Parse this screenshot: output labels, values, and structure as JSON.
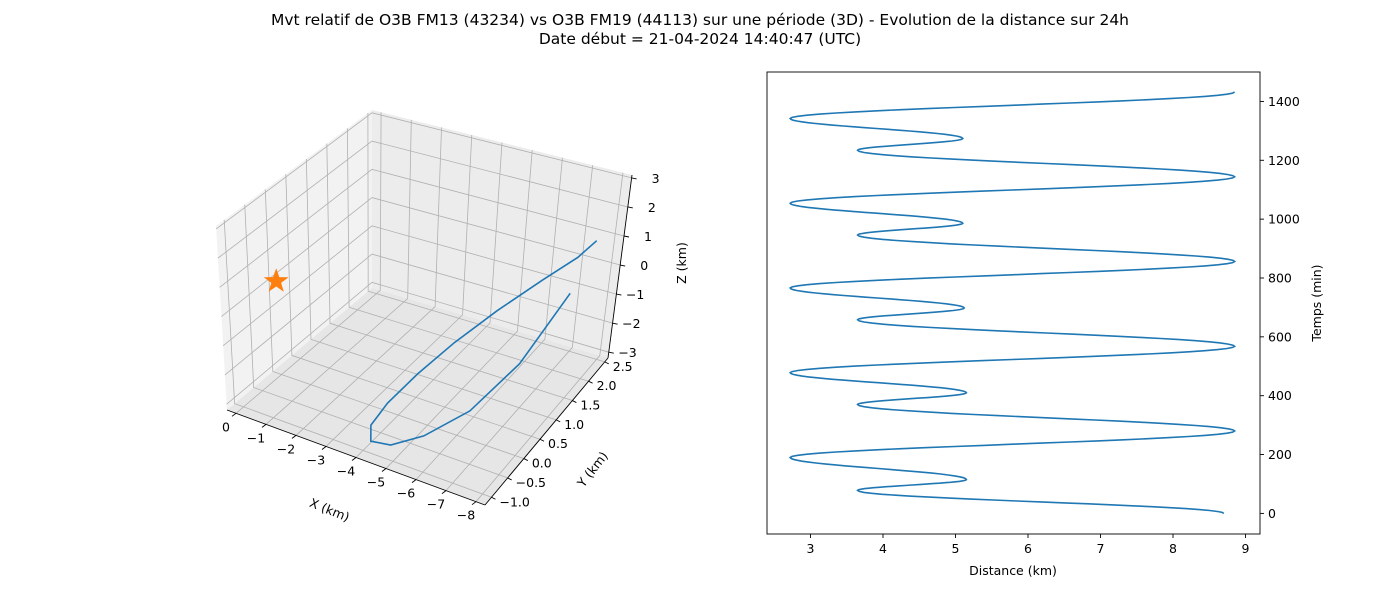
{
  "figure": {
    "title_line1": "Mvt relatif de O3B FM13 (43234) vs O3B FM19 (44113) sur une période (3D) - Evolution de la distance sur 24h",
    "title_line2": "Date début = 21-04-2024 14:40:47 (UTC)"
  },
  "colors": {
    "series": "#1f77b4",
    "marker": "#ff7f0e"
  },
  "chart_data": [
    {
      "type": "line3d",
      "xlabel": "X (km)",
      "ylabel": "Y (km)",
      "zlabel": "Z (km)",
      "xlim": [
        -8.3,
        0.3
      ],
      "ylim": [
        -1.2,
        2.6
      ],
      "zlim": [
        -3.2,
        3.1
      ],
      "xticks": [
        "−8",
        "−7",
        "−6",
        "−5",
        "−4",
        "−3",
        "−2",
        "−1",
        "0"
      ],
      "yticks": [
        "−1.0",
        "−0.5",
        "0.0",
        "0.5",
        "1.0",
        "1.5",
        "2.0",
        "2.5"
      ],
      "zticks": [
        "−3",
        "−2",
        "−1",
        "0",
        "1",
        "2",
        "3"
      ],
      "marker": {
        "shape": "star",
        "x": 0,
        "y": 0,
        "z": 0
      },
      "trajectory": {
        "description_points_x": [
          -8.0,
          -7.6,
          -6.9,
          -6.1,
          -5.4,
          -4.9,
          -4.5,
          -4.3,
          -4.4,
          -4.8,
          -5.4,
          -6.2,
          -6.9,
          -7.4
        ],
        "description_points_y": [
          2.2,
          2.0,
          1.6,
          1.0,
          0.4,
          -0.2,
          -0.7,
          -1.0,
          -1.1,
          -0.9,
          -0.5,
          0.1,
          0.9,
          1.9
        ],
        "description_points_z": [
          2.0,
          1.5,
          0.9,
          0.2,
          -0.5,
          -1.1,
          -1.7,
          -2.2,
          -2.6,
          -2.8,
          -2.7,
          -2.2,
          -1.2,
          0.3
        ]
      }
    },
    {
      "type": "line",
      "xlabel": "Distance (km)",
      "ylabel": "Temps (min)",
      "xlim": [
        2.4,
        9.2
      ],
      "ylim": [
        -70,
        1500
      ],
      "xticks": [
        3,
        4,
        5,
        6,
        7,
        8,
        9
      ],
      "yticks": [
        0,
        200,
        400,
        600,
        800,
        1000,
        1200,
        1400
      ],
      "keypoints_time": [
        0,
        78,
        115,
        190,
        280,
        370,
        410,
        478,
        568,
        658,
        698,
        766,
        856,
        946,
        986,
        1054,
        1144,
        1234,
        1274,
        1342,
        1432
      ],
      "keypoints_distance": [
        8.7,
        3.65,
        5.15,
        2.72,
        8.85,
        3.65,
        5.15,
        2.72,
        8.85,
        3.65,
        5.12,
        2.72,
        8.85,
        3.65,
        5.1,
        2.72,
        8.85,
        3.65,
        5.1,
        2.72,
        8.85
      ]
    }
  ]
}
